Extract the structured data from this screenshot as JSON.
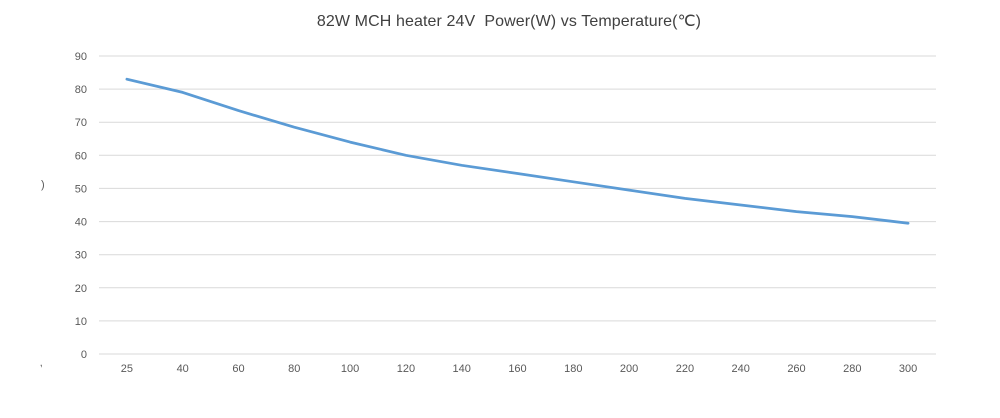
{
  "chart_data": {
    "type": "line",
    "title": "82W MCH heater 24V  Power(W) vs Temperature(℃)",
    "categories": [
      "25",
      "40",
      "60",
      "80",
      "100",
      "120",
      "140",
      "160",
      "180",
      "200",
      "220",
      "240",
      "260",
      "280",
      "300"
    ],
    "values": [
      83,
      79,
      73.5,
      68.5,
      64,
      60,
      57,
      54.5,
      52,
      49.5,
      47,
      45,
      43,
      41.5,
      39.5
    ],
    "xlabel": "",
    "ylabel": "",
    "ylim": [
      0,
      90
    ],
    "yticks": [
      0,
      10,
      20,
      30,
      40,
      50,
      60,
      70,
      80,
      90
    ],
    "grid": true,
    "legend": false
  },
  "colors": {
    "line": "#5B9BD5",
    "gridline": "#D9D9D9",
    "axis_text": "#595959",
    "title_text": "#404040",
    "background": "#FFFFFF"
  },
  "fragments": {
    "left_edge_glyph": ")",
    "bottom_left_glyph": ","
  }
}
